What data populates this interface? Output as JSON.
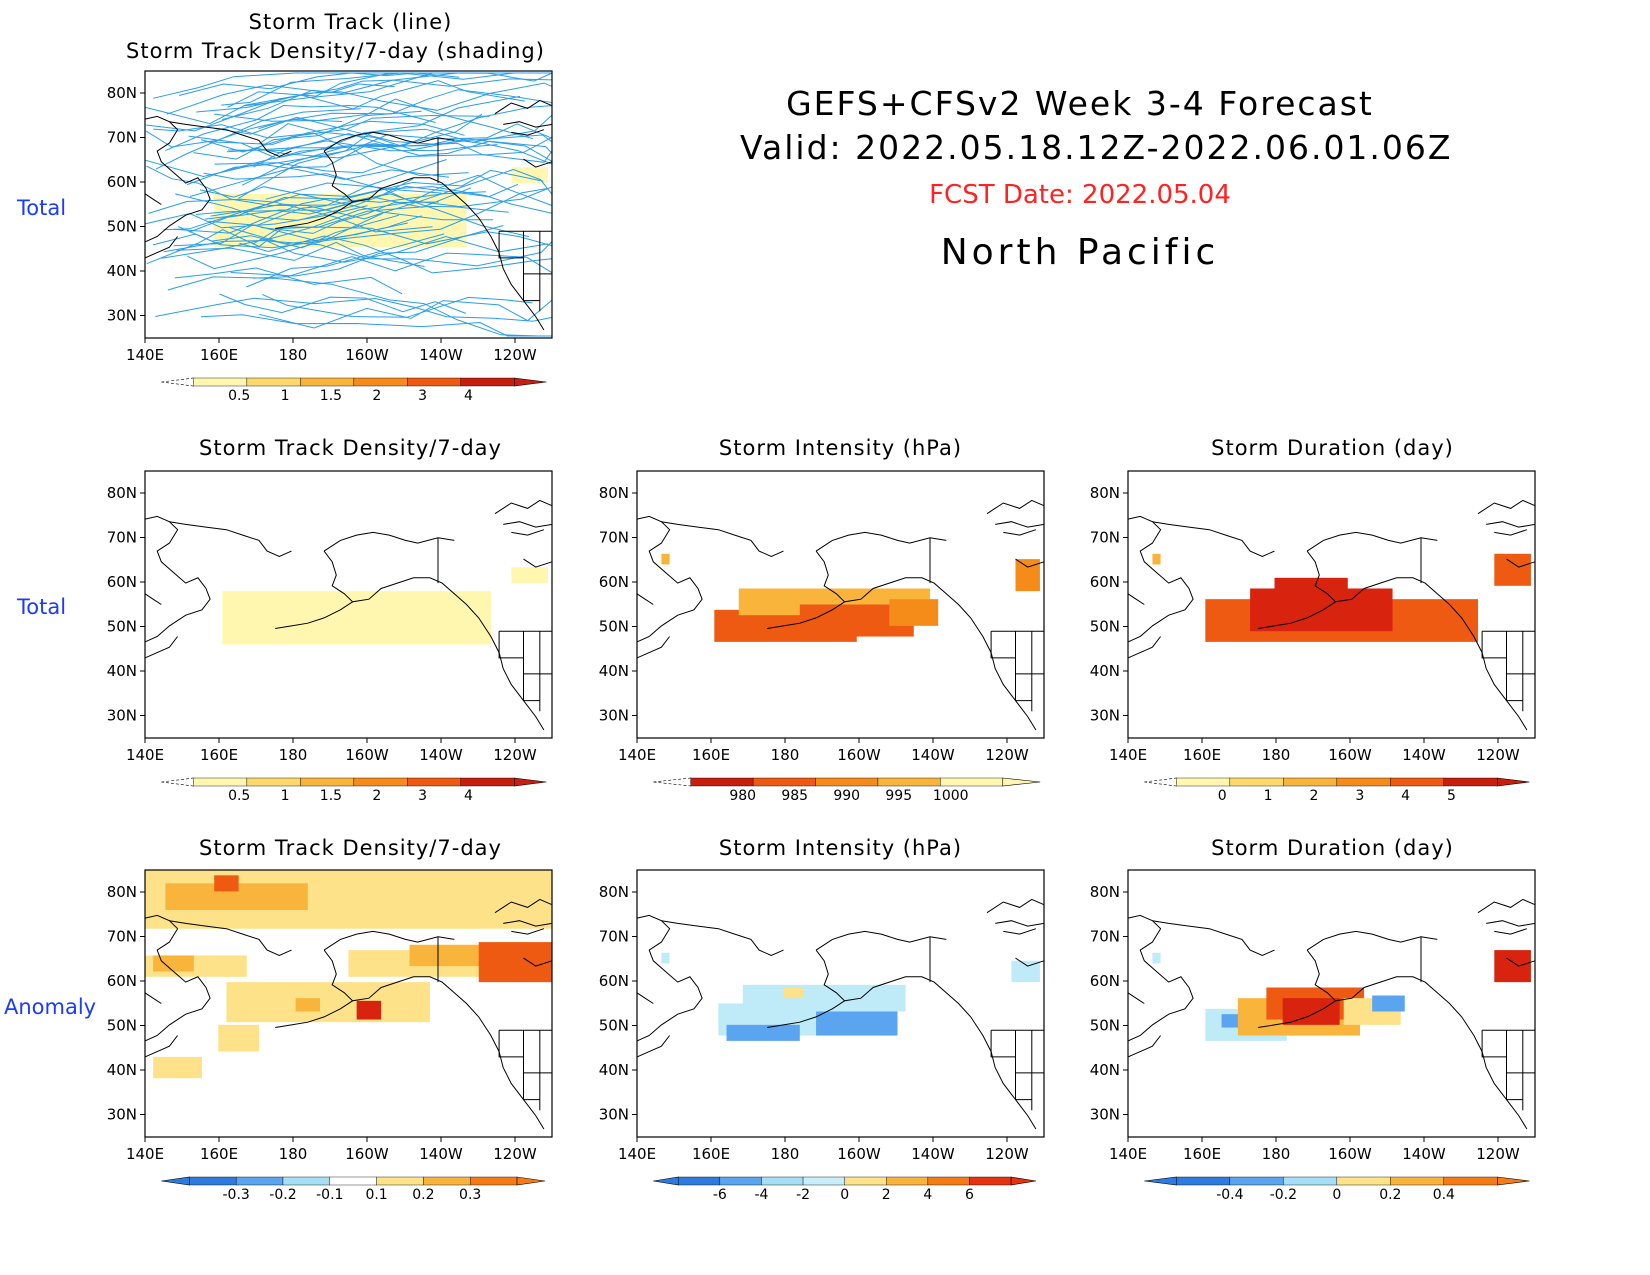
{
  "header": {
    "line1": "GEFS+CFSv2 Week 3-4 Forecast",
    "line2": "Valid: 2022.05.18.12Z-2022.06.01.06Z",
    "fcst": "FCST Date: 2022.05.04",
    "region": "North Pacific",
    "fcst_color": "#ff2222"
  },
  "row_labels": {
    "top": "Total",
    "middle": "Total",
    "bottom": "Anomaly"
  },
  "axes": {
    "lat_labels": [
      "80N",
      "70N",
      "60N",
      "50N",
      "40N",
      "30N"
    ],
    "lon_labels": [
      "140E",
      "160E",
      "180",
      "160W",
      "140W",
      "120W"
    ]
  },
  "panels": [
    {
      "id": "track",
      "title1": "Storm Track (line)",
      "title2": "Storm Track Density/7-day (shading)",
      "colorbar": {
        "labels": [
          "0.5",
          "1",
          "1.5",
          "2",
          "3",
          "4"
        ],
        "colors": [
          "#fff7b0",
          "#fbd96a",
          "#f9b43c",
          "#f58c1a",
          "#ee5a12",
          "#c81e0e"
        ]
      }
    },
    {
      "id": "density-total",
      "title": "Storm Track Density/7-day",
      "colorbar": {
        "labels": [
          "0.5",
          "1",
          "1.5",
          "2",
          "3",
          "4"
        ],
        "colors": [
          "#fff7b0",
          "#fbd96a",
          "#f9b43c",
          "#f58c1a",
          "#ee5a12",
          "#c81e0e"
        ]
      }
    },
    {
      "id": "intensity-total",
      "title": "Storm Intensity (hPa)",
      "colorbar": {
        "labels": [
          "980",
          "985",
          "990",
          "995",
          "1000"
        ],
        "colors": [
          "#c81e0e",
          "#ee5a12",
          "#f58c1a",
          "#f9b43c",
          "#fff7b0"
        ]
      }
    },
    {
      "id": "duration-total",
      "title": "Storm Duration (day)",
      "colorbar": {
        "labels": [
          "0",
          "1",
          "2",
          "3",
          "4",
          "5"
        ],
        "colors": [
          "#fff7b0",
          "#fbd96a",
          "#f9b43c",
          "#f58c1a",
          "#ee5a12",
          "#c81e0e"
        ]
      }
    },
    {
      "id": "density-anom",
      "title": "Storm Track Density/7-day",
      "colorbar": {
        "labels": [
          "-0.3",
          "-0.2",
          "-0.1",
          "0.1",
          "0.2",
          "0.3"
        ],
        "colors": [
          "#2e7be0",
          "#5aa4f0",
          "#a6dff5",
          "#ffffff",
          "#fde28a",
          "#f9b43c",
          "#f57c14"
        ]
      }
    },
    {
      "id": "intensity-anom",
      "title": "Storm Intensity (hPa)",
      "colorbar": {
        "labels": [
          "-6",
          "-4",
          "-2",
          "0",
          "2",
          "4",
          "6"
        ],
        "colors": [
          "#2e7be0",
          "#5aa4f0",
          "#a6dff5",
          "#c8eefa",
          "#fde28a",
          "#f9b43c",
          "#f57c14",
          "#e8320e"
        ]
      }
    },
    {
      "id": "duration-anom",
      "title": "Storm Duration (day)",
      "colorbar": {
        "labels": [
          "-0.4",
          "-0.2",
          "0",
          "0.2",
          "0.4"
        ],
        "colors": [
          "#2e7be0",
          "#5aa4f0",
          "#a6dff5",
          "#fde28a",
          "#f9b43c",
          "#f57c14"
        ]
      }
    }
  ],
  "colors": {
    "track_line": "#2a9ee8",
    "coast": "#000000",
    "light_yellow": "#fff7b0",
    "yellow": "#fde28a",
    "light_orange": "#f9b43c",
    "orange": "#f58c1a",
    "dark_orange": "#ee5a12",
    "red": "#d8240e",
    "light_blue": "#bfeaf8",
    "mid_blue": "#5aa4f0",
    "blue": "#2e7be0"
  }
}
